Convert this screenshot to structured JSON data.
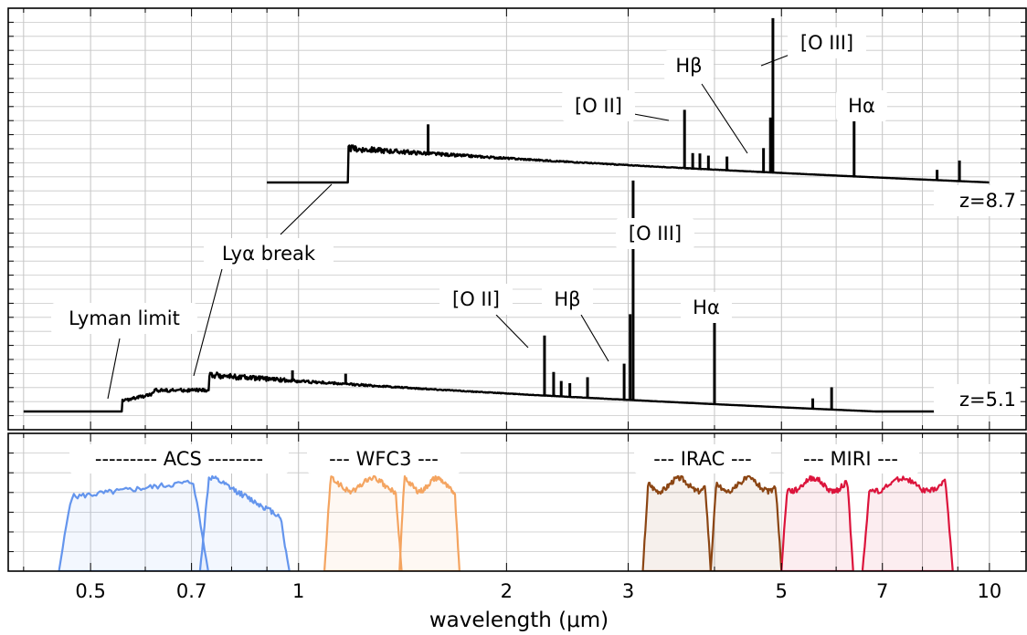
{
  "chart_data": {
    "type": "line",
    "xlabel": "wavelength (μm)",
    "xscale": "log",
    "xlim": [
      0.38,
      11.3
    ],
    "xticks": [
      {
        "v": 0.5,
        "label": "0.5"
      },
      {
        "v": 0.7,
        "label": "0.7"
      },
      {
        "v": 1,
        "label": "1"
      },
      {
        "v": 2,
        "label": "2"
      },
      {
        "v": 3,
        "label": "3"
      },
      {
        "v": 5,
        "label": "5"
      },
      {
        "v": 7,
        "label": "7"
      },
      {
        "v": 10,
        "label": "10"
      }
    ],
    "grid": true,
    "spectra": [
      {
        "name": "z=8.7",
        "redshift": 8.7,
        "x_start": 0.9,
        "x_end": 10,
        "break_flux": 0.145,
        "lines": [
          {
            "x": 3.62,
            "height": 0.34,
            "label": "[O II]"
          },
          {
            "x": 4.71,
            "height": 0.14,
            "label": "Hβ"
          },
          {
            "x": 4.82,
            "height": 0.32
          },
          {
            "x": 4.86,
            "height": 0.9,
            "label": "[O III]"
          },
          {
            "x": 6.37,
            "height": 0.38,
            "label": "Hα"
          },
          {
            "x": 1.54,
            "height": 0.17
          },
          {
            "x": 3.72,
            "height": 0.09
          },
          {
            "x": 3.81,
            "height": 0.09
          },
          {
            "x": 3.92,
            "height": 0.08
          },
          {
            "x": 4.17,
            "height": 0.08
          },
          {
            "x": 9.05,
            "height": 0.12
          },
          {
            "x": 8.4,
            "height": 0.06
          }
        ]
      },
      {
        "name": "z=5.1",
        "redshift": 5.1,
        "x_start": 0.4,
        "x_end": 10,
        "lyman_limit_x": 0.556,
        "break_flux": 0.155,
        "lines": [
          {
            "x": 2.27,
            "height": 0.35,
            "label": "[O II]"
          },
          {
            "x": 2.96,
            "height": 0.21,
            "label": "Hβ"
          },
          {
            "x": 3.02,
            "height": 0.5
          },
          {
            "x": 3.05,
            "height": 1.28,
            "label": "[O III]"
          },
          {
            "x": 4.0,
            "height": 0.52,
            "label": "Hα"
          },
          {
            "x": 2.34,
            "height": 0.14
          },
          {
            "x": 2.4,
            "height": 0.09
          },
          {
            "x": 2.47,
            "height": 0.08
          },
          {
            "x": 2.62,
            "height": 0.12
          },
          {
            "x": 0.98,
            "height": 0.06
          },
          {
            "x": 1.17,
            "height": 0.06
          },
          {
            "x": 5.55,
            "height": 0.06
          },
          {
            "x": 5.91,
            "height": 0.13
          }
        ]
      }
    ],
    "annotations": [
      {
        "text": "[O III]",
        "spectrum": "z=8.7"
      },
      {
        "text": "Hβ",
        "spectrum": "z=8.7"
      },
      {
        "text": "[O II]",
        "spectrum": "z=8.7"
      },
      {
        "text": "Hα",
        "spectrum": "z=8.7"
      },
      {
        "text": "Lyα break",
        "spectrum": "both"
      },
      {
        "text": "[O III]",
        "spectrum": "z=5.1"
      },
      {
        "text": "[O II]",
        "spectrum": "z=5.1"
      },
      {
        "text": "Hβ",
        "spectrum": "z=5.1"
      },
      {
        "text": "Hα",
        "spectrum": "z=5.1"
      },
      {
        "text": "Lyman limit",
        "spectrum": "z=5.1"
      },
      {
        "text": "z=8.7",
        "spectrum": "z=8.7"
      },
      {
        "text": "z=5.1",
        "spectrum": "z=5.1"
      }
    ],
    "filters": [
      {
        "instrument": "--------- ACS --------",
        "color": "#6495ed",
        "bands": [
          [
            0.45,
            0.74
          ],
          [
            0.72,
            0.97
          ]
        ]
      },
      {
        "instrument": "--- WFC3 ---",
        "color": "#f4a460",
        "bands": [
          [
            1.09,
            1.41
          ],
          [
            1.4,
            1.71
          ]
        ]
      },
      {
        "instrument": "--- IRAC ---",
        "color": "#8b4513",
        "bands": [
          [
            3.15,
            3.95
          ],
          [
            3.95,
            5.0
          ]
        ]
      },
      {
        "instrument": "--- MIRI ---",
        "color": "#dc143c",
        "bands": [
          [
            5.0,
            6.35
          ],
          [
            6.55,
            8.85
          ]
        ]
      }
    ]
  }
}
